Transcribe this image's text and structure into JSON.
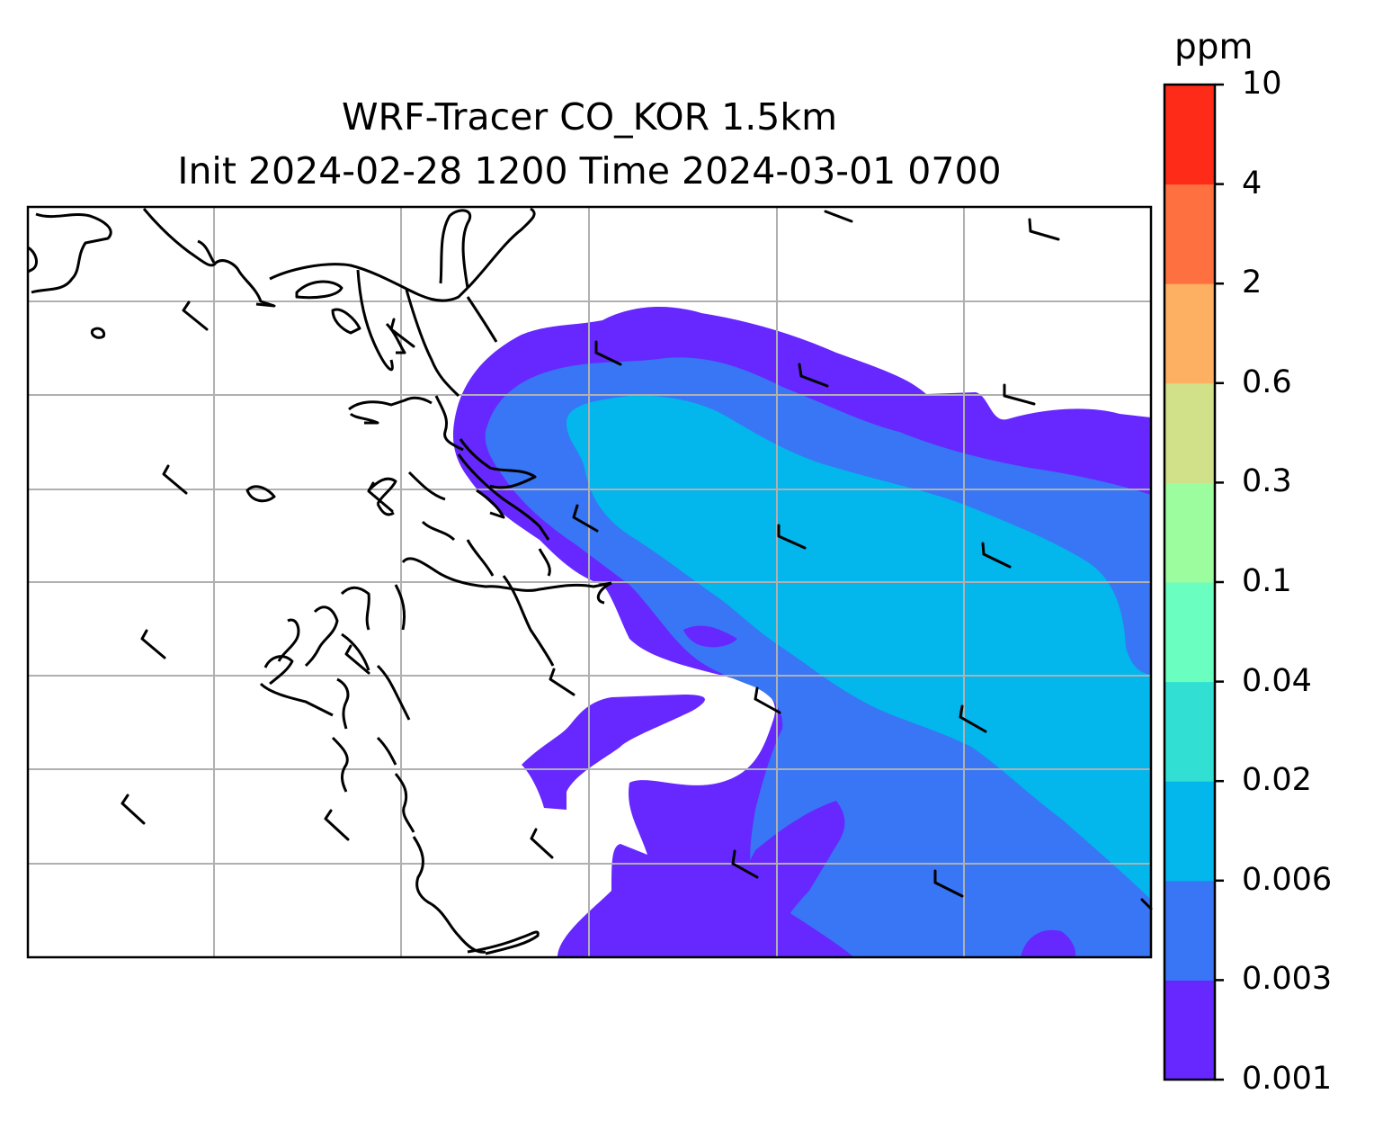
{
  "title": {
    "line1": "WRF-Tracer CO_KOR 1.5km",
    "line2": "Init 2024-02-28 1200 Time 2024-03-01 0700"
  },
  "colorbar": {
    "unit": "ppm",
    "levels": [
      "0.001",
      "0.003",
      "0.006",
      "0.02",
      "0.04",
      "0.1",
      "0.3",
      "0.6",
      "2",
      "4",
      "10"
    ],
    "colors": [
      "#6628ff",
      "#3876f5",
      "#03b6ec",
      "#31e0d3",
      "#6afec0",
      "#9cfd9e",
      "#d0e189",
      "#feb062",
      "#fe7040",
      "#fe2b18"
    ]
  },
  "map": {
    "gridlines": true,
    "coastlines": true,
    "wind_barbs": true
  }
}
